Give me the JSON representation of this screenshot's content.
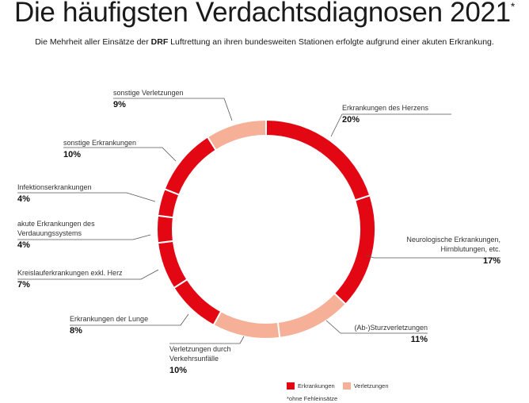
{
  "header": {
    "title": "Die häufigsten Verdachtsdiagnosen 2021",
    "title_mark": "*",
    "subtitle_pre": "Die Mehrheit aller Einsätze der ",
    "subtitle_bold": "DRF",
    "subtitle_post": " Luftrettung an ihren bundesweiten Stationen erfolgte aufgrund einer akuten Erkrankung."
  },
  "colors": {
    "Erkrankungen": "#e30613",
    "Verletzungen": "#f5b097"
  },
  "legend": {
    "items": [
      "Erkrankungen",
      "Verletzungen"
    ],
    "footnote": "*ohne Fehleinsätze"
  },
  "chart_data": {
    "type": "pie",
    "donut": true,
    "unit": "%",
    "categories": [
      "Erkrankungen des Herzens",
      "Neurologische Erkrankungen, Hirnblutungen, etc.",
      "(Ab-)Sturzverletzungen",
      "Verletzungen durch Verkehrsunfälle",
      "Erkrankungen der Lunge",
      "Kreislauferkrankungen exkl. Herz",
      "akute Erkrankungen des Verdauungssystems",
      "Infektionserkrankungen",
      "sonstige Erkrankungen",
      "sonstige Verletzungen"
    ],
    "values": [
      20,
      17,
      11,
      10,
      8,
      7,
      4,
      4,
      10,
      9
    ],
    "labels": [
      "20%",
      "17%",
      "11%",
      "10%",
      "8%",
      "7%",
      "4%",
      "4%",
      "10%",
      "9%"
    ],
    "groups": [
      "Erkrankungen",
      "Erkrankungen",
      "Verletzungen",
      "Verletzungen",
      "Erkrankungen",
      "Erkrankungen",
      "Erkrankungen",
      "Erkrankungen",
      "Erkrankungen",
      "Verletzungen"
    ],
    "start": "12 o'clock",
    "direction": "clockwise"
  }
}
